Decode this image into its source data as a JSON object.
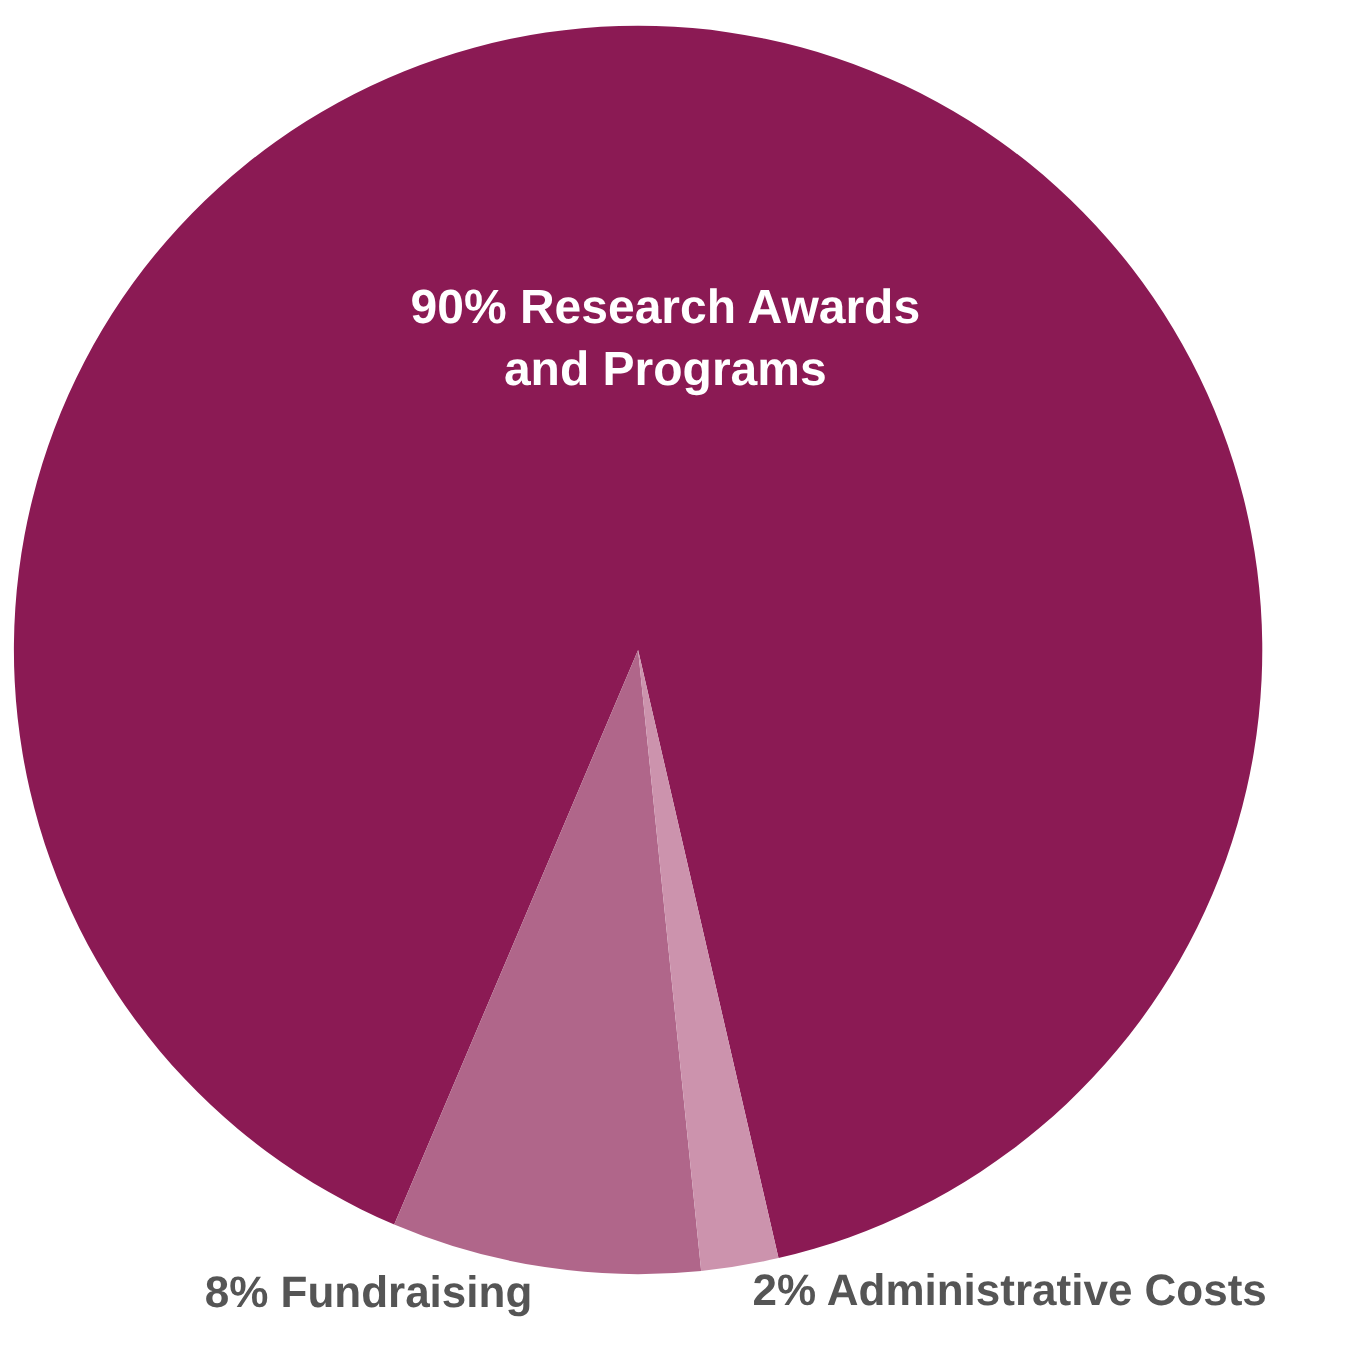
{
  "chart_data": {
    "type": "pie",
    "categories": [
      "Research Awards and Programs",
      "Fundraising",
      "Administrative Costs"
    ],
    "values": [
      90,
      8,
      2
    ],
    "value_labels": [
      "90%",
      "8%",
      "2%"
    ],
    "colors": [
      "#8b1a54",
      "#b0668a",
      "#cc93ad"
    ]
  }
}
